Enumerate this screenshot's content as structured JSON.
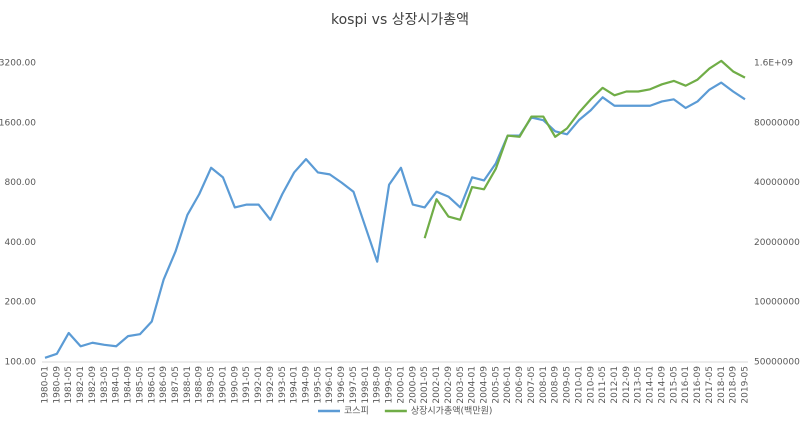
{
  "chart_data": {
    "type": "line",
    "title": "kospi vs 상장시가총액",
    "categories": [
      "1980-01",
      "1980-09",
      "1981-05",
      "1982-01",
      "1982-09",
      "1983-05",
      "1984-01",
      "1984-09",
      "1985-05",
      "1986-01",
      "1986-09",
      "1987-05",
      "1988-01",
      "1988-09",
      "1989-05",
      "1990-01",
      "1990-09",
      "1991-05",
      "1992-01",
      "1992-09",
      "1993-05",
      "1994-01",
      "1994-09",
      "1995-05",
      "1996-01",
      "1996-09",
      "1997-05",
      "1998-01",
      "1998-09",
      "1999-05",
      "2000-01",
      "2000-09",
      "2001-05",
      "2002-01",
      "2002-09",
      "2003-05",
      "2004-01",
      "2004-09",
      "2005-05",
      "2006-01",
      "2006-09",
      "2007-05",
      "2008-01",
      "2008-09",
      "2009-05",
      "2010-01",
      "2010-09",
      "2011-05",
      "2012-01",
      "2012-09",
      "2013-05",
      "2014-01",
      "2014-09",
      "2015-05",
      "2016-01",
      "2016-09",
      "2017-05",
      "2018-01",
      "2018-09",
      "2019-05"
    ],
    "series": [
      {
        "name": "코스피",
        "color": "#5b9bd5",
        "values": [
          105,
          110,
          140,
          120,
          125,
          122,
          120,
          135,
          138,
          160,
          260,
          360,
          550,
          700,
          950,
          850,
          600,
          620,
          620,
          520,
          700,
          900,
          1050,
          900,
          880,
          800,
          720,
          480,
          320,
          780,
          950,
          620,
          600,
          720,
          680,
          600,
          850,
          820,
          1000,
          1380,
          1380,
          1700,
          1650,
          1450,
          1400,
          1650,
          1850,
          2150,
          1950,
          1950,
          1950,
          1950,
          2050,
          2100,
          1900,
          2050,
          2350,
          2550,
          2300,
          2100
        ]
      },
      {
        "name": "상장시가총액(백만원)",
        "color": "#70ad47",
        "axis": "y2",
        "values": [
          null,
          null,
          null,
          null,
          null,
          null,
          null,
          null,
          null,
          null,
          null,
          null,
          null,
          null,
          null,
          null,
          null,
          null,
          null,
          null,
          null,
          null,
          null,
          null,
          null,
          null,
          null,
          null,
          null,
          null,
          null,
          null,
          210000000,
          330000000,
          270000000,
          260000000,
          380000000,
          370000000,
          470000000,
          690000000,
          680000000,
          860000000,
          860000000,
          680000000,
          750000000,
          900000000,
          1050000000,
          1200000000,
          1100000000,
          1150000000,
          1150000000,
          1180000000,
          1250000000,
          1300000000,
          1230000000,
          1320000000,
          1500000000,
          1640000000,
          1450000000,
          1350000000
        ]
      }
    ],
    "log_scale": true,
    "ylim": [
      100,
      3200
    ],
    "yticks": [
      {
        "value": 100,
        "label": "100.00"
      },
      {
        "value": 200,
        "label": "200.00"
      },
      {
        "value": 400,
        "label": "400.00"
      },
      {
        "value": 800,
        "label": "800.00"
      },
      {
        "value": 1600,
        "label": "1600.00"
      },
      {
        "value": 3200,
        "label": "3200.00"
      }
    ],
    "y2lim": [
      50000000,
      1600000000
    ],
    "y2ticks": [
      50000000,
      100000000,
      200000000,
      400000000,
      800000000,
      {
        "value": 1600000000,
        "label": "1.6E+09"
      }
    ],
    "legend": "bottom"
  }
}
